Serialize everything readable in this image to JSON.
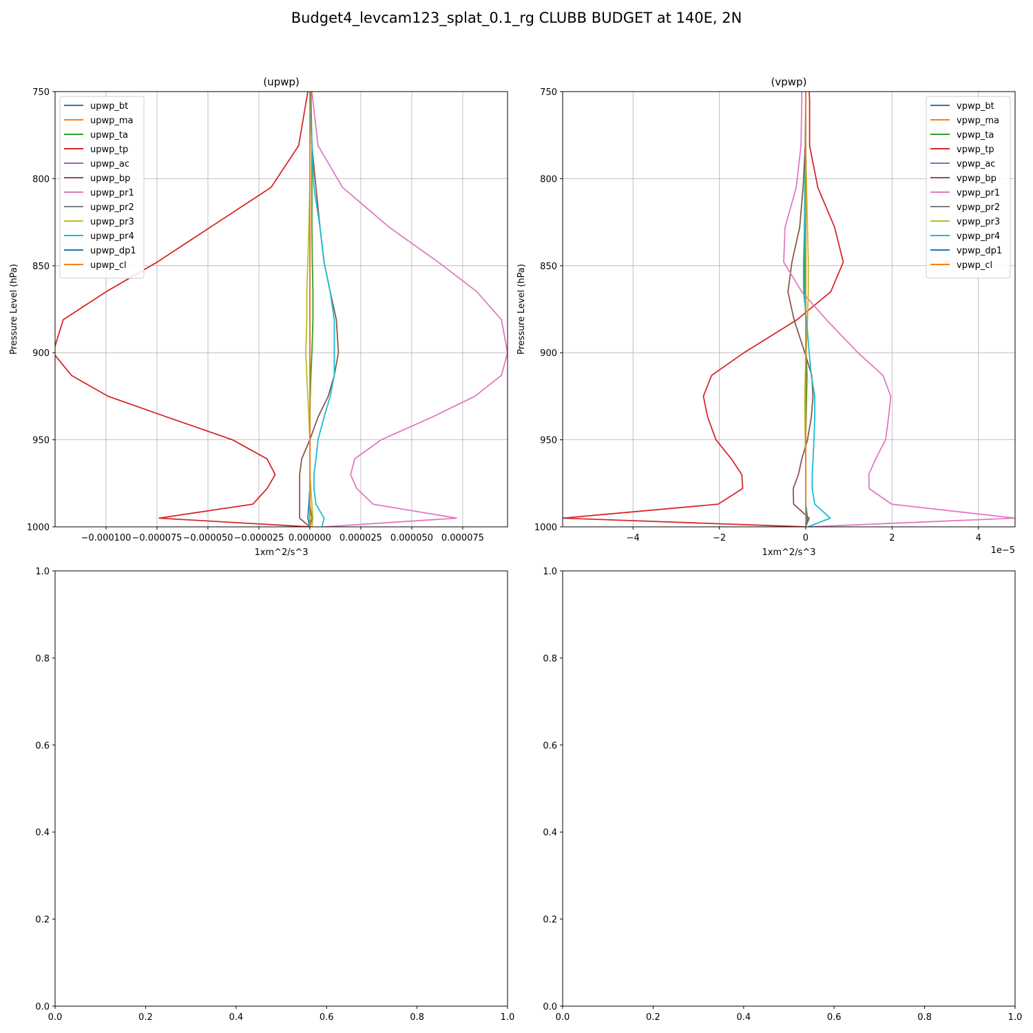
{
  "suptitle": "Budget4_levcam123_splat_0.1_rg CLUBB BUDGET at 140E, 2N",
  "chart_data": [
    {
      "type": "line",
      "title": "(upwp)",
      "xlabel": "1xm^2/s^3",
      "ylabel": "Pressure Level (hPa)",
      "xlim": [
        -0.000125,
        9.7e-05
      ],
      "ylim": [
        1000,
        750
      ],
      "x_offset_label": "",
      "xticks": [
        -0.0001,
        -7.5e-05,
        -5e-05,
        -2.5e-05,
        0,
        2.5e-05,
        5e-05,
        7.5e-05
      ],
      "xtick_labels": [
        "−0.000100",
        "−0.000075",
        "−0.000050",
        "−0.000025",
        "0.000000",
        "0.000025",
        "0.000050",
        "0.000075"
      ],
      "yticks": [
        750,
        800,
        850,
        900,
        950,
        1000
      ],
      "ytick_labels": [
        "750",
        "800",
        "850",
        "900",
        "950",
        "1000"
      ],
      "grid": true,
      "legend_position": "upper left",
      "levels": [
        750,
        781,
        805,
        828,
        848,
        865,
        881,
        900,
        913,
        925,
        937,
        950,
        961,
        970,
        978,
        987,
        995,
        1000
      ],
      "series": [
        {
          "name": "upwp_bt",
          "color": "#1f77b4",
          "values": [
            0,
            0,
            0,
            0,
            0,
            0,
            0,
            0,
            0,
            0,
            0,
            0,
            0,
            0,
            0,
            0,
            0,
            0
          ]
        },
        {
          "name": "upwp_ma",
          "color": "#ff7f0e",
          "values": [
            0,
            0,
            0,
            0,
            0,
            0,
            0,
            0,
            0,
            0,
            0,
            0,
            0,
            0,
            0,
            0,
            0,
            0
          ]
        },
        {
          "name": "upwp_ta",
          "color": "#2ca02c",
          "values": [
            5e-07,
            1e-06,
            1e-06,
            1e-06,
            1.2e-06,
            1.5e-06,
            1.5e-06,
            1e-06,
            5e-07,
            2e-07,
            0,
            0,
            0,
            0,
            0,
            0,
            1e-06,
            0
          ]
        },
        {
          "name": "upwp_tp",
          "color": "#d62728",
          "values": [
            -1e-06,
            -5.5e-06,
            -1.9e-05,
            -4.9e-05,
            -7.5e-05,
            -0.0001,
            -0.000121,
            -0.000126,
            -0.000117,
            -9.9e-05,
            -7e-05,
            -3.8e-05,
            -2.1e-05,
            -1.7e-05,
            -2.1e-05,
            -2.8e-05,
            -7.4e-05,
            0
          ]
        },
        {
          "name": "upwp_ac",
          "color": "#9467bd",
          "values": [
            0,
            0,
            0,
            0,
            0,
            0,
            0,
            0,
            0,
            0,
            0,
            0,
            0,
            0,
            0,
            0,
            0,
            0
          ]
        },
        {
          "name": "upwp_bp",
          "color": "#8c564b",
          "values": [
            0,
            1e-06,
            3e-06,
            5e-06,
            7e-06,
            1e-05,
            1.3e-05,
            1.4e-05,
            1.2e-05,
            9e-06,
            4e-06,
            0,
            -4e-06,
            -5e-06,
            -5e-06,
            -5e-06,
            -5e-06,
            0
          ]
        },
        {
          "name": "upwp_pr1",
          "color": "#e377c2",
          "values": [
            1e-06,
            4e-06,
            1.6e-05,
            3.9e-05,
            6.3e-05,
            8.2e-05,
            9.4e-05,
            9.7e-05,
            9.4e-05,
            8.1e-05,
            6e-05,
            3.5e-05,
            2.2e-05,
            2e-05,
            2.3e-05,
            3.1e-05,
            7.2e-05,
            7e-06
          ]
        },
        {
          "name": "upwp_pr2",
          "color": "#7f7f7f",
          "values": [
            0,
            0,
            0,
            0,
            0,
            0,
            0,
            0,
            0,
            0,
            0,
            0,
            0,
            0,
            0,
            0,
            0,
            0
          ]
        },
        {
          "name": "upwp_pr3",
          "color": "#bcbd22",
          "values": [
            0,
            0,
            0,
            -5e-07,
            -1e-06,
            -1.5e-06,
            -1.5e-06,
            -2e-06,
            -1.5e-06,
            -1e-06,
            -5e-07,
            0,
            0,
            0,
            5e-07,
            1e-06,
            1.5e-06,
            1e-06
          ]
        },
        {
          "name": "upwp_pr4",
          "color": "#17becf",
          "values": [
            0,
            1e-06,
            2e-06,
            5e-06,
            7e-06,
            1e-05,
            1.2e-05,
            1.2e-05,
            1.2e-05,
            1e-05,
            7e-06,
            4e-06,
            3e-06,
            2e-06,
            2e-06,
            3e-06,
            7e-06,
            6e-06
          ]
        },
        {
          "name": "upwp_dp1",
          "color": "#1f77b4",
          "values": [
            0,
            0,
            0,
            0,
            0,
            0,
            0,
            0,
            0,
            0,
            0,
            0,
            0,
            0,
            0,
            -5e-07,
            -1e-06,
            0
          ]
        },
        {
          "name": "upwp_cl",
          "color": "#ff7f0e",
          "values": [
            0,
            0,
            0,
            0,
            0,
            0,
            0,
            0,
            0,
            0,
            0,
            0,
            0,
            0,
            0,
            0,
            0,
            0
          ]
        }
      ]
    },
    {
      "type": "line",
      "title": "(vpwp)",
      "xlabel": "1xm^2/s^3",
      "ylabel": "Pressure Level (hPa)",
      "xlim": [
        -5.63e-05,
        4.85e-05
      ],
      "ylim": [
        1000,
        750
      ],
      "x_offset_label": "1e−5",
      "xticks": [
        -4e-05,
        -2e-05,
        0,
        2e-05,
        4e-05
      ],
      "xtick_labels": [
        "−4",
        "−2",
        "0",
        "2",
        "4"
      ],
      "yticks": [
        750,
        800,
        850,
        900,
        950,
        1000
      ],
      "ytick_labels": [
        "750",
        "800",
        "850",
        "900",
        "950",
        "1000"
      ],
      "grid": true,
      "legend_position": "upper right",
      "levels": [
        750,
        755,
        781,
        805,
        828,
        848,
        865,
        881,
        900,
        913,
        925,
        937,
        950,
        961,
        970,
        978,
        987,
        995,
        1000
      ],
      "series": [
        {
          "name": "vpwp_bt",
          "color": "#1f77b4",
          "values": [
            0,
            0,
            0,
            0,
            0,
            0,
            0,
            0,
            0,
            0,
            0,
            0,
            0,
            0,
            0,
            0,
            0,
            0,
            0
          ]
        },
        {
          "name": "vpwp_ma",
          "color": "#ff7f0e",
          "values": [
            0,
            0,
            0,
            0,
            0,
            0,
            0,
            0,
            0,
            0,
            0,
            0,
            0,
            0,
            0,
            0,
            0,
            0,
            0
          ]
        },
        {
          "name": "vpwp_ta",
          "color": "#2ca02c",
          "values": [
            0,
            0,
            0,
            -2e-07,
            -3e-07,
            -3e-07,
            -2e-07,
            0,
            1e-07,
            3e-07,
            2e-07,
            1e-07,
            0,
            0,
            0,
            0,
            0,
            3e-07,
            0
          ]
        },
        {
          "name": "vpwp_tp",
          "color": "#d62728",
          "values": [
            8e-07,
            9e-07,
            9e-07,
            2.8e-06,
            6.7e-06,
            8.7e-06,
            5.8e-06,
            -2e-06,
            -1.43e-05,
            -2.18e-05,
            -2.37e-05,
            -2.27e-05,
            -2.08e-05,
            -1.72e-05,
            -1.48e-05,
            -1.46e-05,
            -2.03e-05,
            -5.63e-05,
            0
          ]
        },
        {
          "name": "vpwp_ac",
          "color": "#9467bd",
          "values": [
            0,
            0,
            0,
            0,
            0,
            0,
            0,
            0,
            0,
            0,
            0,
            0,
            0,
            0,
            0,
            0,
            0,
            0,
            0
          ]
        },
        {
          "name": "vpwp_bp",
          "color": "#8c564b",
          "values": [
            0,
            0,
            -1e-07,
            -6e-07,
            -1.4e-06,
            -3.2e-06,
            -4.1e-06,
            -2.7e-06,
            -2e-07,
            1.4e-06,
            1.7e-06,
            1.3e-06,
            4e-07,
            -9e-07,
            -1.7e-06,
            -2.9e-06,
            -2.8e-06,
            8e-07,
            0
          ]
        },
        {
          "name": "vpwp_pr1",
          "color": "#e377c2",
          "values": [
            -9e-07,
            -9e-07,
            -1.1e-06,
            -2.2e-06,
            -4.8e-06,
            -5.1e-06,
            -9e-07,
            4.8e-06,
            1.21e-05,
            1.79e-05,
            1.97e-05,
            1.92e-05,
            1.85e-05,
            1.62e-05,
            1.46e-05,
            1.47e-05,
            1.99e-05,
            4.85e-05,
            5e-07
          ]
        },
        {
          "name": "vpwp_pr2",
          "color": "#7f7f7f",
          "values": [
            0,
            0,
            0,
            0,
            0,
            0,
            0,
            0,
            0,
            0,
            0,
            0,
            0,
            0,
            0,
            0,
            0,
            0,
            0
          ]
        },
        {
          "name": "vpwp_pr3",
          "color": "#bcbd22",
          "values": [
            0,
            0,
            0,
            2e-07,
            4e-07,
            6e-07,
            6e-07,
            4e-07,
            1e-07,
            -1e-07,
            -2e-07,
            -2e-07,
            -1e-07,
            0,
            0,
            0,
            0,
            4e-07,
            0
          ]
        },
        {
          "name": "vpwp_pr4",
          "color": "#17becf",
          "values": [
            0,
            0,
            0,
            -1e-07,
            -3e-07,
            -5e-07,
            -5e-07,
            2e-07,
            8e-07,
            1.3e-06,
            2.1e-06,
            2.1e-06,
            1.9e-06,
            1.7e-06,
            1.5e-06,
            1.5e-06,
            2.1e-06,
            5.7e-06,
            5e-07
          ]
        },
        {
          "name": "vpwp_dp1",
          "color": "#1f77b4",
          "values": [
            0,
            0,
            0,
            0,
            0,
            0,
            0,
            0,
            0,
            0,
            0,
            0,
            0,
            0,
            0,
            0,
            0,
            4e-07,
            0
          ]
        },
        {
          "name": "vpwp_cl",
          "color": "#ff7f0e",
          "values": [
            0,
            0,
            0,
            0,
            0,
            0,
            0,
            0,
            0,
            0,
            0,
            0,
            0,
            0,
            0,
            0,
            0,
            0,
            0
          ]
        }
      ]
    },
    {
      "type": "line",
      "title": "",
      "xlim": [
        0,
        1
      ],
      "ylim": [
        0,
        1
      ],
      "xticks": [
        0,
        0.2,
        0.4,
        0.6,
        0.8,
        1.0
      ],
      "xtick_labels": [
        "0.0",
        "0.2",
        "0.4",
        "0.6",
        "0.8",
        "1.0"
      ],
      "yticks": [
        0,
        0.2,
        0.4,
        0.6,
        0.8,
        1.0
      ],
      "ytick_labels": [
        "0.0",
        "0.2",
        "0.4",
        "0.6",
        "0.8",
        "1.0"
      ],
      "grid": false,
      "series": []
    },
    {
      "type": "line",
      "title": "",
      "xlim": [
        0,
        1
      ],
      "ylim": [
        0,
        1
      ],
      "xticks": [
        0,
        0.2,
        0.4,
        0.6,
        0.8,
        1.0
      ],
      "xtick_labels": [
        "0.0",
        "0.2",
        "0.4",
        "0.6",
        "0.8",
        "1.0"
      ],
      "yticks": [
        0,
        0.2,
        0.4,
        0.6,
        0.8,
        1.0
      ],
      "ytick_labels": [
        "0.0",
        "0.2",
        "0.4",
        "0.6",
        "0.8",
        "1.0"
      ],
      "grid": false,
      "series": []
    }
  ]
}
